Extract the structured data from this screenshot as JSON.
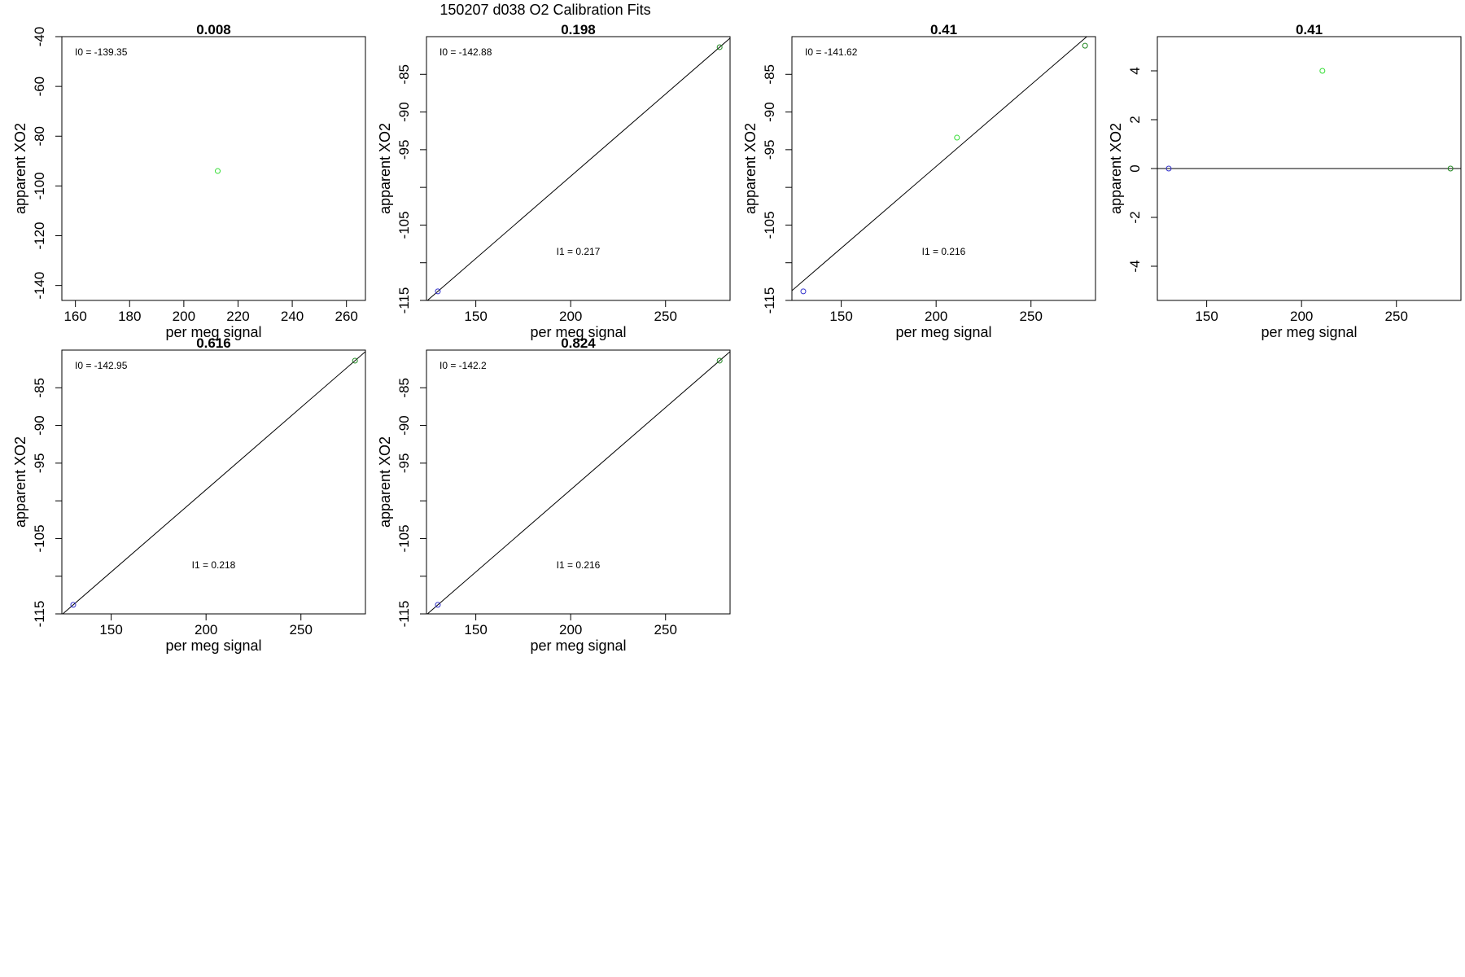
{
  "figure": {
    "title": "150207   d038   O2 Calibration Fits"
  },
  "chart_data": [
    {
      "type": "scatter",
      "title": "0.008",
      "xlabel": "per meg signal",
      "ylabel": "apparent XO2",
      "xlim": [
        155,
        267
      ],
      "ylim": [
        -146,
        -40
      ],
      "xticks": [
        160,
        180,
        200,
        220,
        240,
        260
      ],
      "yticks": [
        -140,
        -120,
        -100,
        -80,
        -60,
        -40
      ],
      "annotations": [
        {
          "text": "I0 =  -139.35"
        }
      ],
      "points": [
        {
          "x": 212.5,
          "y": -94,
          "color": "#33dd33"
        }
      ],
      "fit_line": null
    },
    {
      "type": "scatter",
      "title": "0.198",
      "xlabel": "per meg signal",
      "ylabel": "apparent XO2",
      "xlim": [
        124,
        284
      ],
      "ylim": [
        -115,
        -80
      ],
      "xticks": [
        150,
        200,
        250
      ],
      "yticks": [
        -115,
        -105,
        -95,
        -90,
        -85
      ],
      "minor_yticks": [
        -110,
        -100
      ],
      "annotations": [
        {
          "text": "I0 =  -142.88"
        },
        {
          "text": "I1 =  0.217"
        }
      ],
      "points": [
        {
          "x": 130,
          "y": -113.8,
          "color": "#3333cc"
        },
        {
          "x": 278.5,
          "y": -81.4,
          "color": "#228822"
        }
      ],
      "fit_line": {
        "x": [
          130,
          278.5
        ],
        "y": [
          -113.8,
          -81.4
        ]
      }
    },
    {
      "type": "scatter",
      "title": "0.41",
      "xlabel": "per meg signal",
      "ylabel": "apparent XO2",
      "xlim": [
        124,
        284
      ],
      "ylim": [
        -115,
        -80
      ],
      "xticks": [
        150,
        200,
        250
      ],
      "yticks": [
        -115,
        -105,
        -95,
        -90,
        -85
      ],
      "minor_yticks": [
        -110,
        -100
      ],
      "annotations": [
        {
          "text": "I0 =  -141.62"
        },
        {
          "text": "I1 =  0.216"
        }
      ],
      "points": [
        {
          "x": 130,
          "y": -113.8,
          "color": "#3333cc"
        },
        {
          "x": 211,
          "y": -93.4,
          "color": "#33dd33"
        },
        {
          "x": 278.5,
          "y": -81.2,
          "color": "#228822"
        }
      ],
      "fit_line": {
        "x": [
          130,
          278.5
        ],
        "y": [
          -112.4,
          -80.2
        ]
      }
    },
    {
      "type": "scatter",
      "title": "0.41",
      "xlabel": "per meg signal",
      "ylabel": "apparent XO2",
      "xlim": [
        124,
        284
      ],
      "ylim": [
        -5.4,
        5.4
      ],
      "xticks": [
        150,
        200,
        250
      ],
      "yticks": [
        -4,
        -2,
        0,
        2,
        4
      ],
      "annotations": [],
      "points": [
        {
          "x": 130,
          "y": 0,
          "color": "#3333cc"
        },
        {
          "x": 211,
          "y": 4,
          "color": "#33dd33"
        },
        {
          "x": 278.5,
          "y": 0,
          "color": "#228822"
        }
      ],
      "fit_line": {
        "x": [
          124,
          284
        ],
        "y": [
          0,
          0
        ]
      }
    },
    {
      "type": "scatter",
      "title": "0.616",
      "xlabel": "per meg signal",
      "ylabel": "apparent XO2",
      "xlim": [
        124,
        284
      ],
      "ylim": [
        -115,
        -80
      ],
      "xticks": [
        150,
        200,
        250
      ],
      "yticks": [
        -115,
        -105,
        -95,
        -90,
        -85
      ],
      "minor_yticks": [
        -110,
        -100
      ],
      "annotations": [
        {
          "text": "I0 =  -142.95"
        },
        {
          "text": "I1 =  0.218"
        }
      ],
      "points": [
        {
          "x": 130,
          "y": -113.8,
          "color": "#3333cc"
        },
        {
          "x": 278.5,
          "y": -81.4,
          "color": "#228822"
        }
      ],
      "fit_line": {
        "x": [
          130,
          278.5
        ],
        "y": [
          -113.8,
          -81.4
        ]
      }
    },
    {
      "type": "scatter",
      "title": "0.824",
      "xlabel": "per meg signal",
      "ylabel": "apparent XO2",
      "xlim": [
        124,
        284
      ],
      "ylim": [
        -115,
        -80
      ],
      "xticks": [
        150,
        200,
        250
      ],
      "yticks": [
        -115,
        -105,
        -95,
        -90,
        -85
      ],
      "minor_yticks": [
        -110,
        -100
      ],
      "annotations": [
        {
          "text": "I0 =  -142.2"
        },
        {
          "text": "I1 =  0.216"
        }
      ],
      "points": [
        {
          "x": 130,
          "y": -113.8,
          "color": "#3333cc"
        },
        {
          "x": 278.5,
          "y": -81.4,
          "color": "#228822"
        }
      ],
      "fit_line": {
        "x": [
          130,
          278.5
        ],
        "y": [
          -113.8,
          -81.4
        ]
      }
    }
  ]
}
